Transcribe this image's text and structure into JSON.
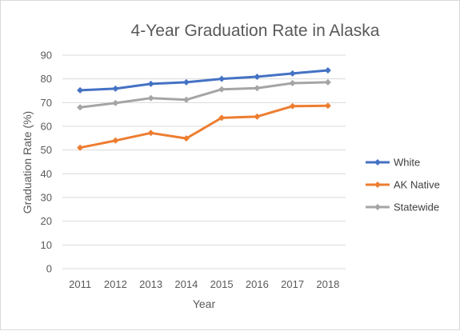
{
  "chart_data": {
    "type": "line",
    "title": "4-Year Graduation Rate in Alaska",
    "xlabel": "Year",
    "ylabel": "Graduation Rate (%)",
    "x": [
      "2011",
      "2012",
      "2013",
      "2014",
      "2015",
      "2016",
      "2017",
      "2018"
    ],
    "ylim": [
      0,
      90
    ],
    "yticks": [
      0,
      10,
      20,
      30,
      40,
      50,
      60,
      70,
      80,
      90
    ],
    "grid": true,
    "legend": "right",
    "series": [
      {
        "name": "White",
        "color": "#4472c4",
        "values": [
          75.2,
          75.9,
          77.9,
          78.6,
          80.0,
          80.9,
          82.3,
          83.6
        ]
      },
      {
        "name": "AK Native",
        "color": "#ed7d31",
        "values": [
          51.0,
          54.0,
          57.2,
          54.9,
          63.6,
          64.1,
          68.5,
          68.7
        ]
      },
      {
        "name": "Statewide",
        "color": "#a5a5a5",
        "values": [
          68.0,
          69.8,
          71.9,
          71.2,
          75.6,
          76.1,
          78.2,
          78.6
        ]
      }
    ]
  }
}
